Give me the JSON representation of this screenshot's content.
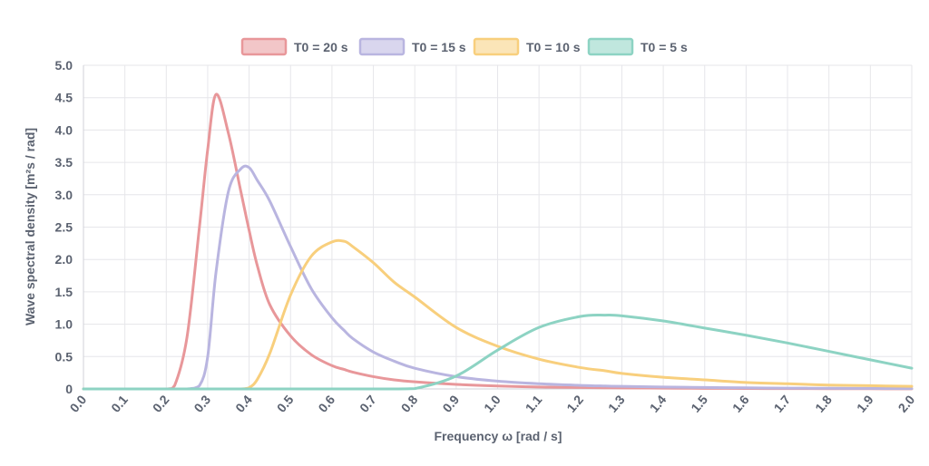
{
  "chart_data": {
    "type": "line",
    "xlabel": "Frequency ω [rad / s]",
    "ylabel": "Wave spectral density [m²s / rad]",
    "xlim": [
      0,
      2.0
    ],
    "ylim": [
      0,
      5.0
    ],
    "x_ticks": [
      "0.0",
      "0.1",
      "0.2",
      "0.3",
      "0.4",
      "0.5",
      "0.6",
      "0.7",
      "0.8",
      "0.9",
      "1.0",
      "1.1",
      "1.2",
      "1.3",
      "1.4",
      "1.5",
      "1.6",
      "1.7",
      "1.8",
      "1.9",
      "2.0"
    ],
    "y_ticks": [
      "0",
      "0.5",
      "1.0",
      "1.5",
      "2.0",
      "2.5",
      "3.0",
      "3.5",
      "4.0",
      "4.5",
      "5.0"
    ],
    "grid": true,
    "legend_position": "top-center",
    "x": [
      0.0,
      0.1,
      0.2,
      0.22,
      0.25,
      0.28,
      0.3,
      0.32,
      0.35,
      0.38,
      0.4,
      0.42,
      0.45,
      0.5,
      0.55,
      0.6,
      0.63,
      0.65,
      0.7,
      0.75,
      0.8,
      0.9,
      1.0,
      1.1,
      1.2,
      1.26,
      1.3,
      1.4,
      1.5,
      1.6,
      1.7,
      1.8,
      1.9,
      2.0
    ],
    "series": [
      {
        "name": "T0 = 20 s",
        "color": "#e8979a",
        "values": [
          0,
          0,
          0.0,
          0.05,
          0.8,
          2.5,
          3.7,
          4.55,
          3.95,
          3.05,
          2.45,
          1.9,
          1.3,
          0.82,
          0.53,
          0.36,
          0.3,
          0.26,
          0.19,
          0.14,
          0.11,
          0.07,
          0.045,
          0.03,
          0.022,
          0.018,
          0.016,
          0.012,
          0.009,
          0.007,
          0.005,
          0.004,
          0.003,
          0.002
        ]
      },
      {
        "name": "T0 = 15 s",
        "color": "#b9b5e0",
        "values": [
          0,
          0,
          0,
          0,
          0.0,
          0.05,
          0.5,
          1.8,
          3.05,
          3.4,
          3.42,
          3.22,
          2.9,
          2.2,
          1.55,
          1.1,
          0.9,
          0.78,
          0.57,
          0.43,
          0.32,
          0.19,
          0.12,
          0.08,
          0.055,
          0.045,
          0.04,
          0.03,
          0.022,
          0.017,
          0.013,
          0.01,
          0.008,
          0.006
        ]
      },
      {
        "name": "T0 = 10 s",
        "color": "#f8cf7d",
        "values": [
          0,
          0,
          0,
          0,
          0,
          0,
          0,
          0,
          0,
          0,
          0.02,
          0.15,
          0.55,
          1.45,
          2.05,
          2.27,
          2.28,
          2.2,
          1.95,
          1.65,
          1.42,
          0.95,
          0.66,
          0.46,
          0.33,
          0.28,
          0.24,
          0.18,
          0.14,
          0.1,
          0.08,
          0.06,
          0.05,
          0.04
        ]
      },
      {
        "name": "T0 = 5 s",
        "color": "#8dd3c3",
        "values": [
          0,
          0,
          0,
          0,
          0,
          0,
          0,
          0,
          0,
          0,
          0,
          0,
          0,
          0,
          0,
          0,
          0,
          0,
          0,
          0,
          0.005,
          0.2,
          0.6,
          0.95,
          1.12,
          1.14,
          1.13,
          1.05,
          0.94,
          0.83,
          0.71,
          0.58,
          0.45,
          0.32
        ]
      }
    ]
  }
}
